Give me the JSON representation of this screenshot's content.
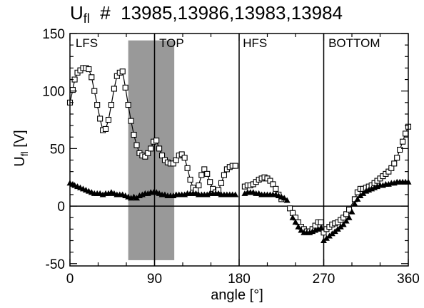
{
  "chart_data": {
    "type": "scatter",
    "title": {
      "main": "U",
      "sub": "fl",
      "rest": "  #  13985,13986,13983,13984"
    },
    "xlabel": "angle [°]",
    "ylabel": {
      "main": "U",
      "sub": "fl",
      "rest": " [V]"
    },
    "xlim": [
      0,
      360
    ],
    "ylim": [
      -52,
      150
    ],
    "xticks": [
      0,
      90,
      180,
      270,
      360
    ],
    "yticks": [
      -50,
      0,
      50,
      100,
      150
    ],
    "x_minor_step": 30,
    "y_minor_step": 10,
    "grid": false,
    "shaded_band": {
      "x": [
        62,
        111
      ],
      "y": [
        -47,
        144
      ],
      "color": "#999999"
    },
    "vlines": [
      90,
      180,
      270
    ],
    "hline": 0,
    "region_labels": [
      {
        "text": "LFS",
        "x": 6
      },
      {
        "text": "TOP",
        "x": 95
      },
      {
        "text": "HFS",
        "x": 184
      },
      {
        "text": "BOTTOM",
        "x": 275
      }
    ],
    "series": [
      {
        "marker": "square",
        "connected": true,
        "points": [
          [
            0,
            90
          ],
          [
            3,
            101
          ],
          [
            5,
            110
          ],
          [
            8,
            116
          ],
          [
            11,
            118
          ],
          [
            14,
            120
          ],
          [
            17,
            120
          ],
          [
            20,
            119
          ],
          [
            23,
            112
          ],
          [
            26,
            100
          ],
          [
            29,
            88
          ],
          [
            32,
            76
          ],
          [
            35,
            66
          ],
          [
            38,
            67
          ],
          [
            41,
            75
          ],
          [
            44,
            88
          ],
          [
            47,
            102
          ],
          [
            50,
            113
          ],
          [
            53,
            116
          ],
          [
            56,
            117
          ],
          [
            59,
            103
          ],
          [
            62,
            88
          ],
          [
            65,
            74
          ],
          [
            68,
            62
          ],
          [
            71,
            53
          ],
          [
            74,
            46
          ],
          [
            77,
            44
          ],
          [
            80,
            43
          ],
          [
            83,
            46
          ],
          [
            86,
            50
          ],
          [
            89,
            56
          ],
          [
            92,
            57
          ],
          [
            95,
            50
          ],
          [
            98,
            44
          ],
          [
            101,
            40
          ],
          [
            104,
            38
          ],
          [
            107,
            37
          ],
          [
            110,
            37
          ],
          [
            113,
            40
          ],
          [
            116,
            44
          ],
          [
            119,
            45
          ],
          [
            122,
            42
          ],
          [
            125,
            33
          ],
          [
            128,
            23
          ],
          [
            131,
            16
          ],
          [
            134,
            14
          ],
          [
            137,
            18
          ],
          [
            140,
            27
          ],
          [
            143,
            32
          ],
          [
            146,
            28
          ],
          [
            149,
            21
          ],
          [
            152,
            15
          ],
          [
            155,
            12
          ],
          [
            158,
            14
          ],
          [
            161,
            20
          ],
          [
            164,
            27
          ],
          [
            167,
            32
          ],
          [
            170,
            34
          ],
          [
            173,
            35
          ],
          [
            176,
            35
          ],
          [
            186,
            17
          ],
          [
            189,
            18
          ],
          [
            192,
            18
          ],
          [
            195,
            19
          ],
          [
            198,
            21
          ],
          [
            201,
            23
          ],
          [
            204,
            24
          ],
          [
            207,
            25
          ],
          [
            210,
            24
          ],
          [
            213,
            22
          ],
          [
            216,
            19
          ],
          [
            219,
            15
          ],
          [
            222,
            10
          ],
          [
            225,
            6
          ],
          [
            234,
            -2
          ],
          [
            237,
            -6
          ],
          [
            240,
            -10
          ],
          [
            243,
            -14
          ],
          [
            246,
            -18
          ],
          [
            249,
            -20
          ],
          [
            252,
            -22
          ],
          [
            255,
            -22
          ],
          [
            258,
            -20
          ],
          [
            261,
            -17
          ],
          [
            264,
            -14
          ],
          [
            267,
            -14
          ],
          [
            270,
            -23
          ],
          [
            273,
            -20
          ],
          [
            276,
            -18
          ],
          [
            279,
            -16
          ],
          [
            282,
            -15
          ],
          [
            285,
            -14
          ],
          [
            288,
            -12
          ],
          [
            291,
            -10
          ],
          [
            294,
            -7
          ],
          [
            297,
            -3
          ],
          [
            303,
            6
          ],
          [
            306,
            12
          ],
          [
            309,
            15
          ],
          [
            312,
            15
          ],
          [
            315,
            16
          ],
          [
            318,
            17
          ],
          [
            321,
            18
          ],
          [
            324,
            20
          ],
          [
            327,
            22
          ],
          [
            330,
            24
          ],
          [
            333,
            26
          ],
          [
            336,
            28
          ],
          [
            339,
            30
          ],
          [
            342,
            33
          ],
          [
            345,
            37
          ],
          [
            348,
            42
          ],
          [
            351,
            49
          ],
          [
            354,
            56
          ],
          [
            357,
            63
          ],
          [
            360,
            69
          ]
        ]
      },
      {
        "marker": "triangle",
        "connected": false,
        "points": [
          [
            0,
            20
          ],
          [
            3,
            19
          ],
          [
            5,
            18
          ],
          [
            8,
            17
          ],
          [
            11,
            16
          ],
          [
            14,
            15
          ],
          [
            17,
            14
          ],
          [
            20,
            13
          ],
          [
            23,
            12
          ],
          [
            26,
            11
          ],
          [
            29,
            11
          ],
          [
            32,
            11
          ],
          [
            35,
            10
          ],
          [
            38,
            11
          ],
          [
            41,
            11
          ],
          [
            44,
            12
          ],
          [
            47,
            11
          ],
          [
            50,
            10
          ],
          [
            53,
            10
          ],
          [
            56,
            10
          ],
          [
            59,
            9
          ],
          [
            62,
            8
          ],
          [
            65,
            7
          ],
          [
            68,
            8
          ],
          [
            71,
            7
          ],
          [
            74,
            9
          ],
          [
            77,
            10
          ],
          [
            80,
            11
          ],
          [
            83,
            11
          ],
          [
            86,
            12
          ],
          [
            89,
            12
          ],
          [
            92,
            12
          ],
          [
            95,
            11
          ],
          [
            98,
            10
          ],
          [
            101,
            10
          ],
          [
            104,
            9
          ],
          [
            107,
            9
          ],
          [
            110,
            9
          ],
          [
            113,
            10
          ],
          [
            116,
            10
          ],
          [
            119,
            10
          ],
          [
            122,
            10
          ],
          [
            125,
            11
          ],
          [
            128,
            11
          ],
          [
            131,
            11
          ],
          [
            134,
            11
          ],
          [
            137,
            10
          ],
          [
            140,
            10
          ],
          [
            143,
            10
          ],
          [
            146,
            10
          ],
          [
            149,
            11
          ],
          [
            152,
            11
          ],
          [
            155,
            11
          ],
          [
            158,
            11
          ],
          [
            161,
            10
          ],
          [
            164,
            10
          ],
          [
            167,
            10
          ],
          [
            170,
            10
          ],
          [
            173,
            10
          ],
          [
            176,
            10
          ],
          [
            186,
            11
          ],
          [
            189,
            12
          ],
          [
            192,
            12
          ],
          [
            195,
            12
          ],
          [
            198,
            11
          ],
          [
            201,
            11
          ],
          [
            204,
            10
          ],
          [
            207,
            10
          ],
          [
            210,
            10
          ],
          [
            213,
            10
          ],
          [
            216,
            10
          ],
          [
            219,
            10
          ],
          [
            222,
            9
          ],
          [
            225,
            8
          ],
          [
            228,
            7
          ],
          [
            231,
            5
          ],
          [
            237,
            -10
          ],
          [
            240,
            -14
          ],
          [
            243,
            -18
          ],
          [
            246,
            -21
          ],
          [
            249,
            -23
          ],
          [
            252,
            -23
          ],
          [
            255,
            -23
          ],
          [
            258,
            -22
          ],
          [
            261,
            -21
          ],
          [
            264,
            -20
          ],
          [
            267,
            -19
          ],
          [
            270,
            -30
          ],
          [
            273,
            -28
          ],
          [
            276,
            -26
          ],
          [
            279,
            -24
          ],
          [
            282,
            -22
          ],
          [
            285,
            -20
          ],
          [
            288,
            -18
          ],
          [
            291,
            -16
          ],
          [
            294,
            -13
          ],
          [
            297,
            -10
          ],
          [
            300,
            -5
          ],
          [
            303,
            2
          ],
          [
            306,
            6
          ],
          [
            309,
            9
          ],
          [
            312,
            11
          ],
          [
            315,
            13
          ],
          [
            318,
            14
          ],
          [
            321,
            15
          ],
          [
            324,
            16
          ],
          [
            327,
            17
          ],
          [
            330,
            18
          ],
          [
            333,
            18
          ],
          [
            336,
            19
          ],
          [
            339,
            19
          ],
          [
            342,
            20
          ],
          [
            345,
            20
          ],
          [
            348,
            21
          ],
          [
            351,
            21
          ],
          [
            354,
            21
          ],
          [
            357,
            21
          ],
          [
            360,
            21
          ]
        ]
      }
    ]
  }
}
